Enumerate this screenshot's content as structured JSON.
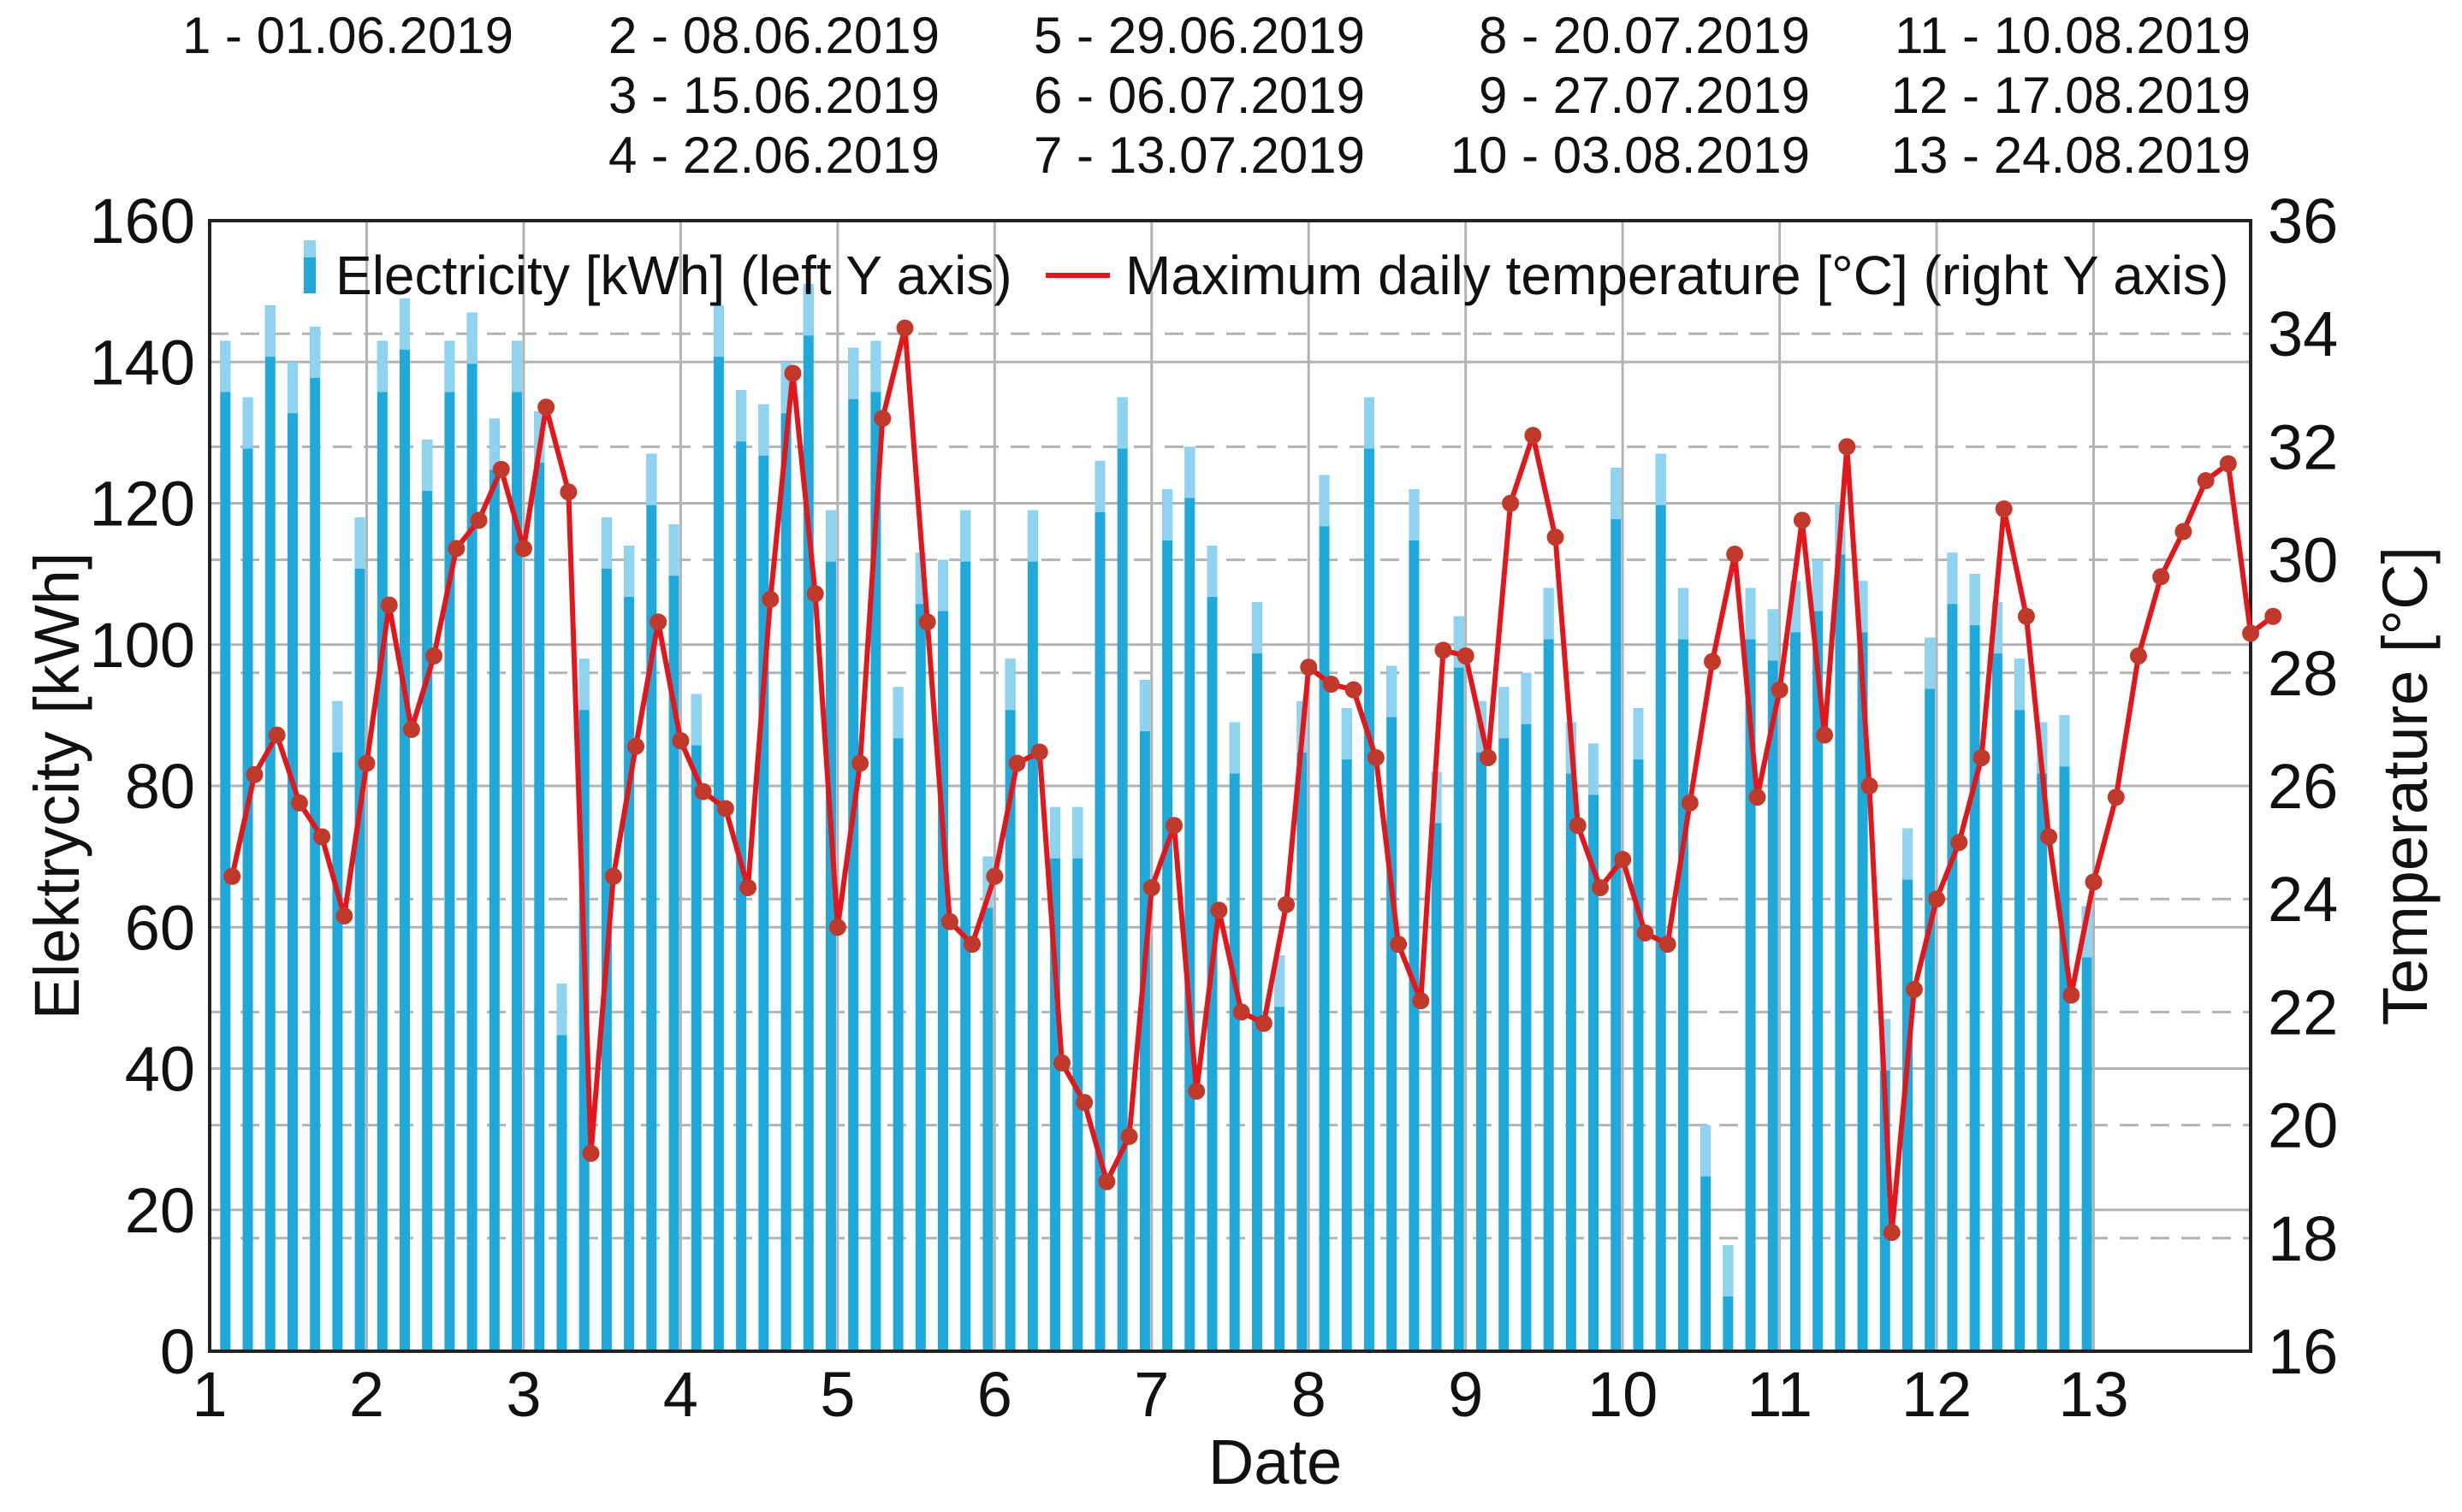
{
  "date_key": [
    [
      "1 - 01.06.2019"
    ],
    [
      "2 - 08.06.2019",
      "3 - 15.06.2019",
      "4 - 22.06.2019"
    ],
    [
      "5 - 29.06.2019",
      "6 - 06.07.2019",
      "7 - 13.07.2019"
    ],
    [
      "8 - 20.07.2019",
      "9 - 27.07.2019",
      "10 - 03.08.2019"
    ],
    [
      "11 - 10.08.2019",
      "12 - 17.08.2019",
      "13 - 24.08.2019"
    ]
  ],
  "colors": {
    "bar": "#1fa9db",
    "bar_light": "#8fd3f0",
    "line": "#e2161b",
    "marker": "#c0392b",
    "grid": "#b3b3b3"
  },
  "chart_data": {
    "type": "bar+line",
    "xlabel": "Date",
    "ylabel_left": "Elektrycity [kWh]",
    "ylabel_right": "Temperature [°C]",
    "x_tick_labels": [
      "1",
      "2",
      "3",
      "4",
      "5",
      "6",
      "7",
      "8",
      "9",
      "10",
      "11",
      "12",
      "13"
    ],
    "ylim_left": [
      0,
      160
    ],
    "yticks_left": [
      0,
      20,
      40,
      60,
      80,
      100,
      120,
      140,
      160
    ],
    "ylim_right": [
      16,
      36
    ],
    "yticks_right": [
      16,
      18,
      20,
      22,
      24,
      26,
      28,
      30,
      32,
      34,
      36
    ],
    "x_range": [
      1,
      14
    ],
    "legend": {
      "bars": "Electricity [kWh] (left Y axis)",
      "line": "Maximum daily temperature [°C] (right Y axis)",
      "placement": "top"
    },
    "bar_series": {
      "name": "Electricity [kWh] (left Y axis)",
      "x_start": 1.1,
      "x_step": 0.142857,
      "values": [
        143,
        135,
        148,
        140,
        145,
        92,
        118,
        143,
        149,
        129,
        143,
        147,
        132,
        143,
        133,
        52,
        98,
        118,
        114,
        127,
        117,
        93,
        148,
        136,
        134,
        140,
        151,
        119,
        142,
        143,
        94,
        113,
        112,
        119,
        70,
        98,
        119,
        77,
        77,
        126,
        135,
        95,
        122,
        128,
        114,
        89,
        106,
        56,
        92,
        124,
        91,
        135,
        97,
        122,
        82,
        104,
        92,
        94,
        96,
        108,
        89,
        86,
        125,
        91,
        127,
        108,
        32,
        15,
        108,
        105,
        109,
        112,
        120,
        109,
        47,
        74,
        101,
        113,
        110,
        106,
        98,
        89,
        90,
        63
      ]
    },
    "line_series": {
      "name": "Maximum daily temperature [°C] (right Y axis)",
      "x_start": 1.143,
      "x_step": 0.142857,
      "values": [
        24.4,
        26.2,
        26.9,
        25.7,
        25.1,
        23.7,
        26.4,
        29.2,
        27.0,
        28.3,
        30.2,
        30.7,
        31.6,
        30.2,
        32.7,
        31.2,
        19.5,
        24.4,
        26.7,
        28.9,
        26.8,
        25.9,
        25.6,
        24.2,
        29.3,
        33.3,
        29.4,
        23.5,
        26.4,
        32.5,
        34.1,
        28.9,
        23.6,
        23.2,
        24.4,
        26.4,
        26.6,
        21.1,
        20.4,
        19.0,
        19.8,
        24.2,
        25.3,
        20.6,
        23.8,
        22.0,
        21.8,
        23.9,
        28.1,
        27.8,
        27.7,
        26.5,
        23.2,
        22.2,
        28.4,
        28.3,
        26.5,
        31.0,
        32.2,
        30.4,
        25.3,
        24.2,
        24.7,
        23.4,
        23.2,
        25.7,
        28.2,
        30.1,
        25.8,
        27.7,
        30.7,
        26.9,
        32.0,
        26.0,
        18.1,
        22.4,
        24.0,
        25.0,
        26.5,
        30.9,
        29.0,
        25.1,
        22.3,
        24.3,
        25.8,
        28.3,
        29.7,
        30.5,
        31.4,
        31.7,
        28.7,
        29.0
      ]
    }
  }
}
